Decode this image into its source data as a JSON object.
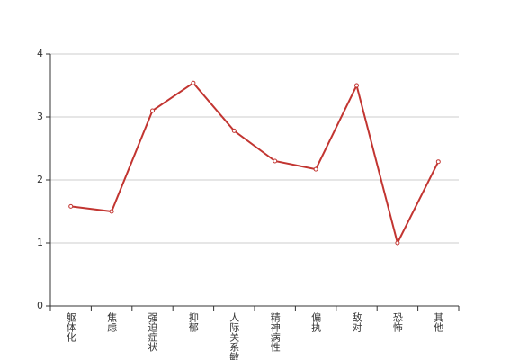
{
  "chart_data": {
    "type": "line",
    "categories": [
      "躯体化",
      "焦虑",
      "强迫症状",
      "抑郁",
      "人际关系敏感",
      "精神病性",
      "偏执",
      "敌对",
      "恐怖",
      "其他"
    ],
    "values": [
      1.58,
      1.5,
      3.1,
      3.54,
      2.78,
      2.3,
      2.17,
      3.5,
      1.0,
      2.29
    ],
    "color": "#c23531",
    "ylim": [
      0,
      4
    ],
    "yticks": [
      0,
      1,
      2,
      3,
      4
    ],
    "grid": true
  }
}
